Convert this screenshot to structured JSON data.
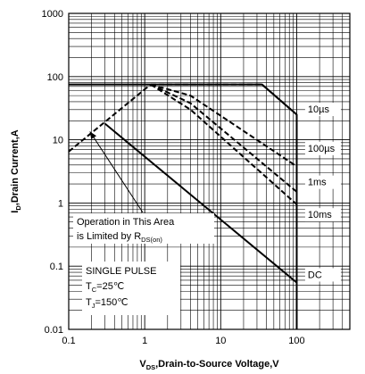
{
  "chart_data": {
    "type": "line",
    "title": "",
    "xlabel_main": "V",
    "xlabel_sub": "DS",
    "xlabel_rest": ",Drain-to-Source Voltage,V",
    "ylabel_main": "I",
    "ylabel_sub": "D",
    "ylabel_rest": ",Drain Current,A",
    "xscale": "log",
    "yscale": "log",
    "xlim": [
      0.1,
      500
    ],
    "ylim": [
      0.01,
      1000
    ],
    "grid": true,
    "xticks": [
      0.1,
      1,
      10,
      100
    ],
    "xtick_labels": [
      "0.1",
      "1",
      "10",
      "100"
    ],
    "yticks": [
      0.01,
      0.1,
      1,
      10,
      100,
      1000
    ],
    "ytick_labels": [
      "0.01",
      "0.1",
      "1",
      "10",
      "100",
      "1000"
    ],
    "rds_limit": {
      "style": "dashed",
      "points": [
        [
          0.1,
          6.5
        ],
        [
          1.2,
          75
        ]
      ]
    },
    "series": [
      {
        "name": "10µs",
        "style": "solid",
        "points": [
          [
            0.1,
            75
          ],
          [
            35,
            75
          ],
          [
            100,
            25
          ],
          [
            100,
            0.01
          ]
        ]
      },
      {
        "name": "10µs",
        "style": "dashed",
        "points": [
          [
            1.2,
            75
          ],
          [
            35,
            75
          ],
          [
            100,
            25
          ]
        ]
      },
      {
        "name": "100µs",
        "style": "dashed",
        "points": [
          [
            1.2,
            75
          ],
          [
            4,
            50
          ],
          [
            100,
            3.8
          ]
        ]
      },
      {
        "name": "1ms",
        "style": "dashed",
        "points": [
          [
            1.2,
            75
          ],
          [
            4,
            38
          ],
          [
            100,
            1.5
          ]
        ]
      },
      {
        "name": "10ms",
        "style": "dashed",
        "points": [
          [
            1.2,
            75
          ],
          [
            4,
            30
          ],
          [
            100,
            0.95
          ]
        ]
      },
      {
        "name": "DC",
        "style": "solid",
        "points": [
          [
            0.3,
            18
          ],
          [
            100,
            0.055
          ]
        ]
      }
    ],
    "series_labels": [
      {
        "text": "10µs",
        "at": [
          140,
          27
        ]
      },
      {
        "text": "100µs",
        "at": [
          140,
          6.5
        ]
      },
      {
        "text": "1ms",
        "at": [
          140,
          1.9
        ]
      },
      {
        "text": "10ms",
        "at": [
          140,
          0.58
        ]
      },
      {
        "text": "DC",
        "at": [
          140,
          0.065
        ]
      }
    ],
    "annotations": {
      "operation_line1": "Operation in This Area",
      "operation_line2_prefix": "is Limited by R",
      "operation_line2_sub": "DS(on)",
      "pulse_line1": "SINGLE PULSE",
      "tc_prefix": "T",
      "tc_sub": "C",
      "tc_value": "=25℃",
      "tj_prefix": "T",
      "tj_sub": "J",
      "tj_value": "=150℃"
    }
  }
}
